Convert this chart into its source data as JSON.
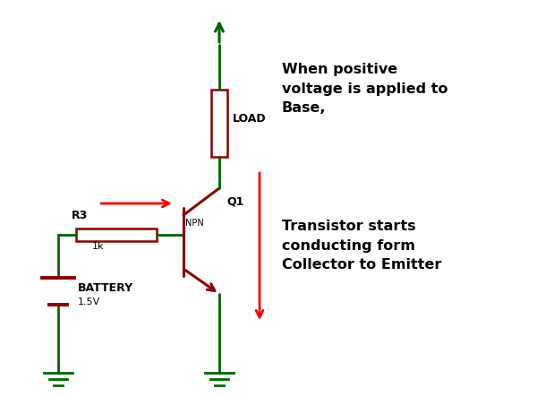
{
  "bg_color": "#ffffff",
  "dark_green": "#006400",
  "dark_red": "#8B0000",
  "red": "#FF0000",
  "black": "#000000",
  "battery_label": "BATTERY",
  "battery_value": "1.5V",
  "resistor_label": "R3",
  "resistor_value": "1k",
  "load_label": "LOAD",
  "transistor_label": "Q1",
  "npn_label": "NPN",
  "text1": "When positive\nvoltage is applied to\nBase,",
  "text2": "Transistor starts\nconducting form\nCollector to Emitter",
  "figsize": [
    6.0,
    4.43
  ],
  "dpi": 100
}
